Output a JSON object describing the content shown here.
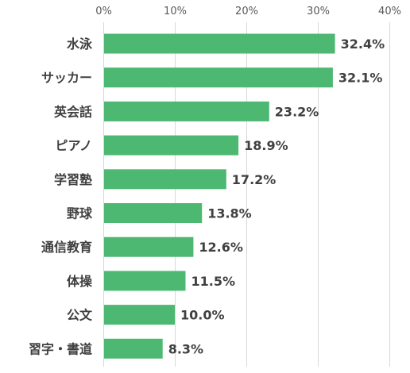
{
  "chart_data": {
    "type": "bar",
    "orientation": "horizontal",
    "categories": [
      "水泳",
      "サッカー",
      "英会話",
      "ピアノ",
      "学習塾",
      "野球",
      "通信教育",
      "体操",
      "公文",
      "習字・書道"
    ],
    "values": [
      32.4,
      32.1,
      23.2,
      18.9,
      17.2,
      13.8,
      12.6,
      11.5,
      10.0,
      8.3
    ],
    "value_labels": [
      "32.4%",
      "32.1%",
      "23.2%",
      "18.9%",
      "17.2%",
      "13.8%",
      "12.6%",
      "11.5%",
      "10.0%",
      "8.3%"
    ],
    "xlim": [
      0,
      40
    ],
    "x_ticks": [
      0,
      10,
      20,
      30,
      40
    ],
    "x_tick_labels": [
      "0%",
      "10%",
      "20%",
      "30%",
      "40%"
    ],
    "x_axis_position": "top",
    "grid": true,
    "bar_color": "#4cb872"
  }
}
